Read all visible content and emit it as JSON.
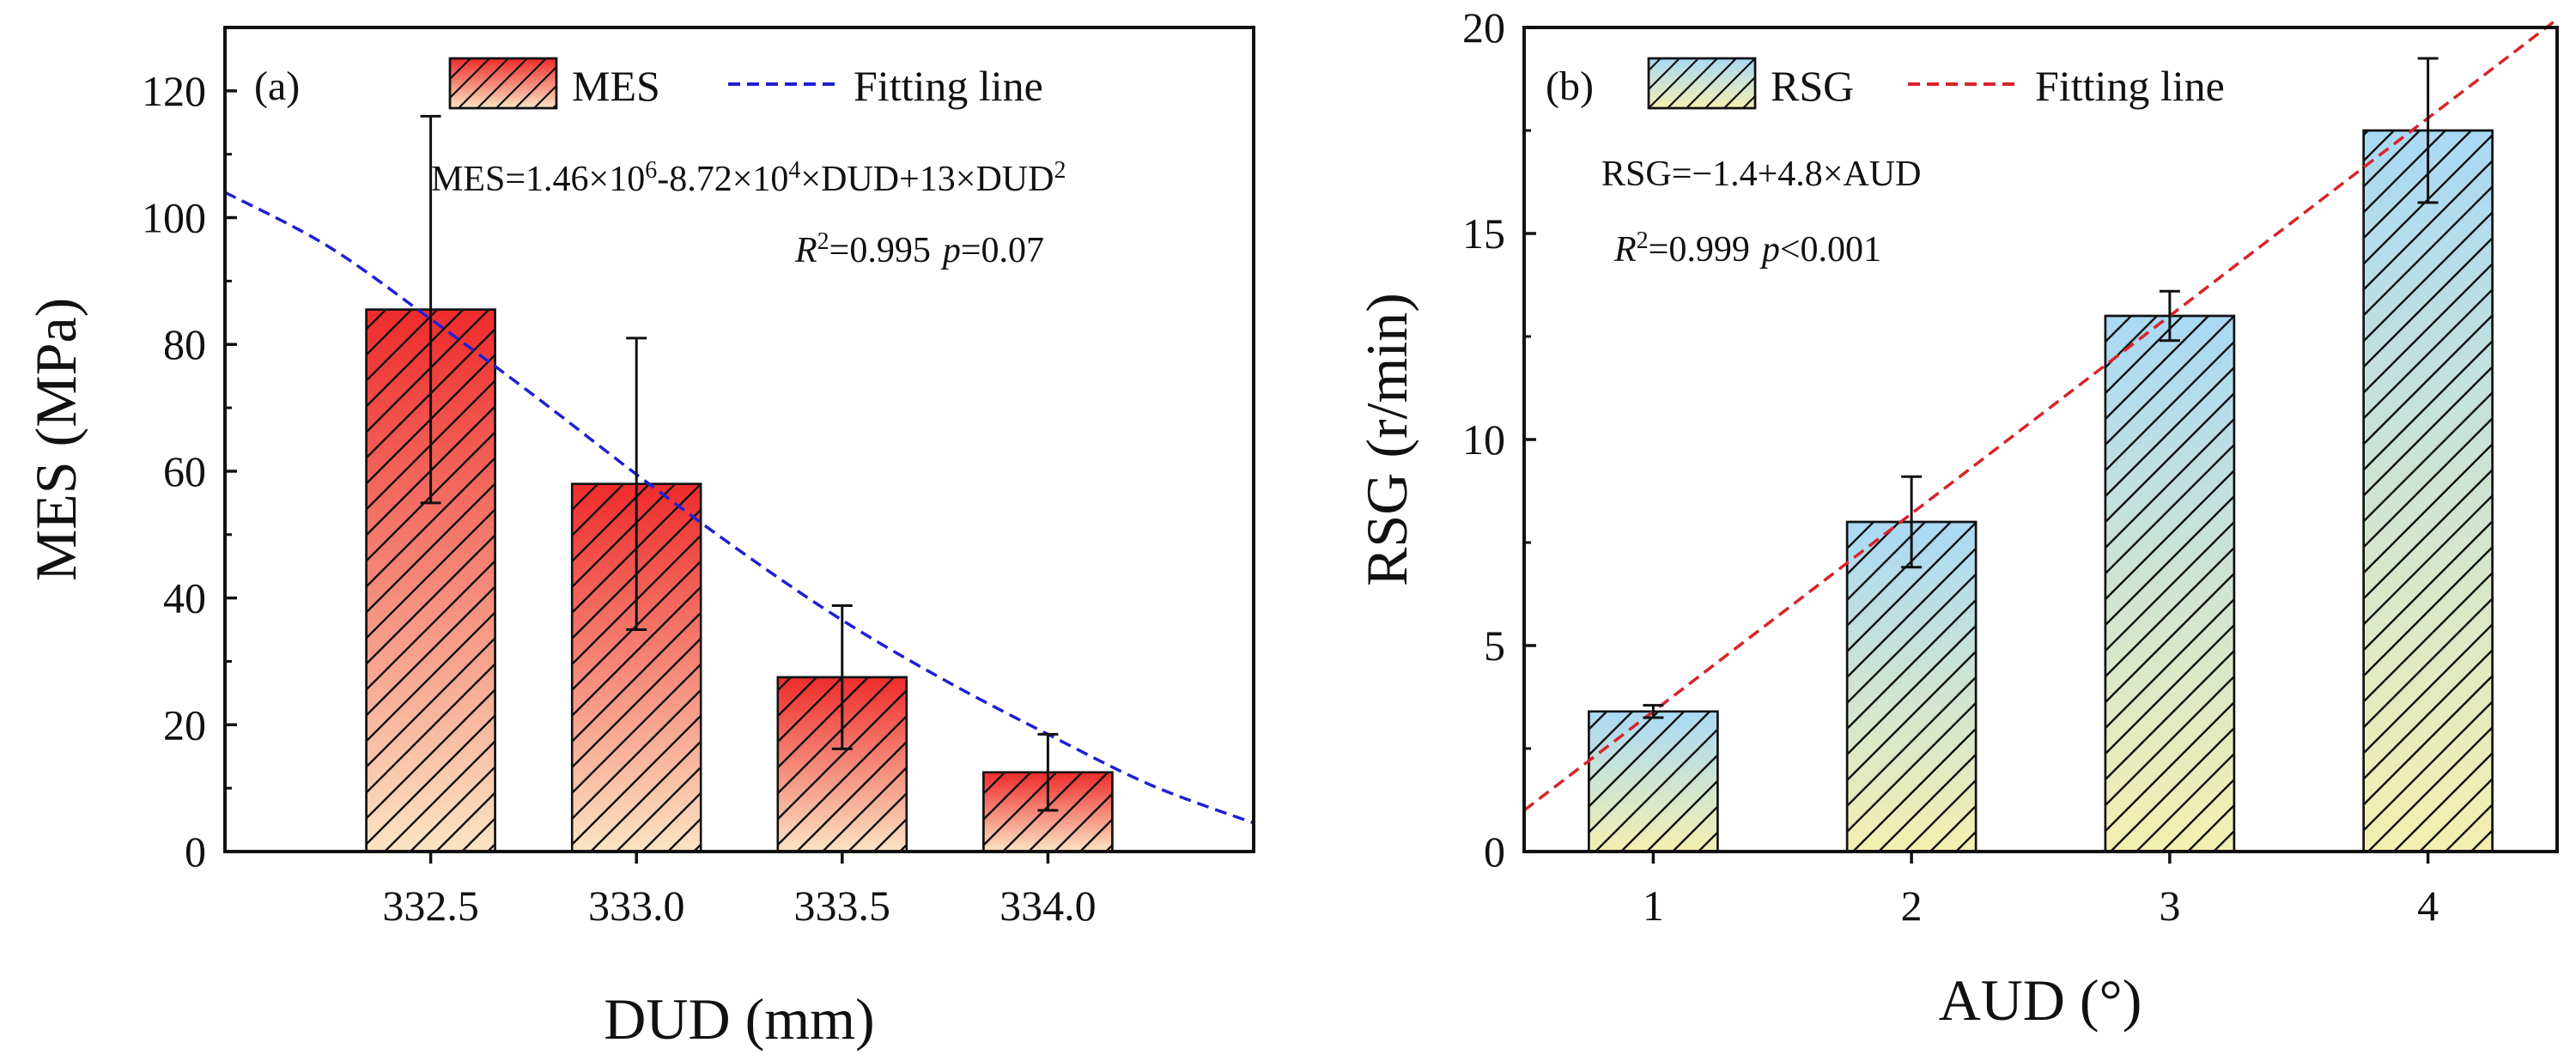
{
  "colors": {
    "axis": "#111111",
    "mes_bar_top": "#ef2b2b",
    "mes_bar_bottom": "#fbe4c4",
    "mes_fit": "#1f1fd6",
    "rsg_bar_top": "#a9d9f5",
    "rsg_bar_bottom": "#f4efb0",
    "rsg_fit": "#d9232a"
  },
  "chart_data": [
    {
      "id": "a",
      "type": "bar",
      "panel_label": "(a)",
      "xlabel": "DUD (mm)",
      "ylabel": "MES (MPa)",
      "categories": [
        "332.5",
        "333.0",
        "333.5",
        "334.0"
      ],
      "x_numeric": [
        332.5,
        333.0,
        333.5,
        334.0
      ],
      "xlim": [
        332.0,
        334.5
      ],
      "ylim": [
        0,
        130
      ],
      "yticks": [
        0,
        20,
        40,
        60,
        80,
        100,
        120
      ],
      "series": [
        {
          "name": "MES",
          "values": [
            85.5,
            58.0,
            27.5,
            12.5
          ],
          "errors": [
            30.5,
            23.0,
            11.3,
            6.0
          ]
        }
      ],
      "fit": {
        "name": "Fitting line",
        "equation": {
          "main": "MES=1.46×10",
          "sup1": "6",
          "mid": "-8.72×10",
          "sup2": "4",
          "tail": "×DUD+13×DUD",
          "sup3": "2"
        },
        "stats": {
          "r_label": "R",
          "r_sup": "2",
          "r_value": "=0.995",
          "p_label": "p",
          "p_value": "=0.07"
        },
        "points_x": [
          332.0,
          332.25,
          332.5,
          332.75,
          333.0,
          333.25,
          333.5,
          333.75,
          334.0,
          334.25,
          334.5
        ],
        "points_y": [
          104.0,
          95.5,
          84.0,
          72.0,
          59.5,
          47.5,
          36.5,
          27.0,
          18.5,
          10.5,
          4.5
        ]
      },
      "legend": {
        "bar_label": "MES",
        "line_label": "Fitting line"
      }
    },
    {
      "id": "b",
      "type": "bar",
      "panel_label": "(b)",
      "xlabel": "AUD (°)",
      "ylabel": "RSG (r/min)",
      "categories": [
        "1",
        "2",
        "3",
        "4"
      ],
      "x_numeric": [
        1,
        2,
        3,
        4
      ],
      "xlim": [
        0.5,
        4.5
      ],
      "ylim": [
        0,
        20
      ],
      "yticks": [
        0,
        5,
        10,
        15,
        20
      ],
      "series": [
        {
          "name": "RSG",
          "values": [
            3.4,
            8.0,
            13.0,
            17.5
          ],
          "errors": [
            0.15,
            1.1,
            0.6,
            1.75
          ]
        }
      ],
      "fit": {
        "name": "Fitting line",
        "equation": {
          "text": "RSG=−1.4+4.8×AUD"
        },
        "stats": {
          "r_label": "R",
          "r_sup": "2",
          "r_value": "=0.999",
          "p_label": "p",
          "p_value": "<0.001"
        },
        "points_x": [
          0.5,
          4.5
        ],
        "points_y": [
          1.0,
          20.2
        ]
      },
      "legend": {
        "bar_label": "RSG",
        "line_label": "Fitting line"
      }
    }
  ]
}
